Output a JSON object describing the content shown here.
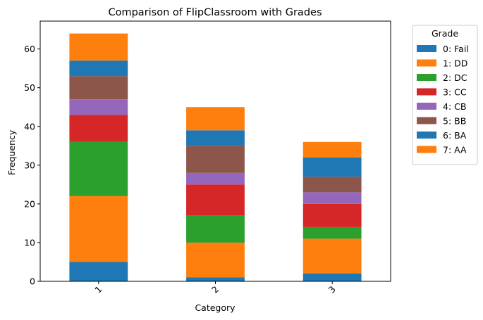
{
  "chart_data": {
    "type": "bar",
    "stacked": true,
    "title": "Comparison of FlipClassroom with Grades",
    "xlabel": "Category",
    "ylabel": "Frequency",
    "categories": [
      "1",
      "2",
      "3"
    ],
    "ylim": [
      0,
      67.2
    ],
    "yticks": [
      0,
      10,
      20,
      30,
      40,
      50,
      60
    ],
    "grid": false,
    "legend": {
      "title": "Grade",
      "placement": "outside-top-right"
    },
    "series": [
      {
        "name": "0: Fail",
        "color": "#1f77b4",
        "values": [
          5,
          1,
          2
        ]
      },
      {
        "name": "1: DD",
        "color": "#ff7f0e",
        "values": [
          17,
          9,
          9
        ]
      },
      {
        "name": "2: DC",
        "color": "#2ca02c",
        "values": [
          14,
          7,
          3
        ]
      },
      {
        "name": "3: CC",
        "color": "#d62728",
        "values": [
          7,
          8,
          6
        ]
      },
      {
        "name": "4: CB",
        "color": "#9467bd",
        "values": [
          4,
          3,
          3
        ]
      },
      {
        "name": "5: BB",
        "color": "#8c564b",
        "values": [
          6,
          7,
          4
        ]
      },
      {
        "name": "6: BA",
        "color": "#1f77b4",
        "values": [
          4,
          4,
          5
        ]
      },
      {
        "name": "7: AA",
        "color": "#ff7f0e",
        "values": [
          7,
          6,
          4
        ]
      }
    ]
  }
}
